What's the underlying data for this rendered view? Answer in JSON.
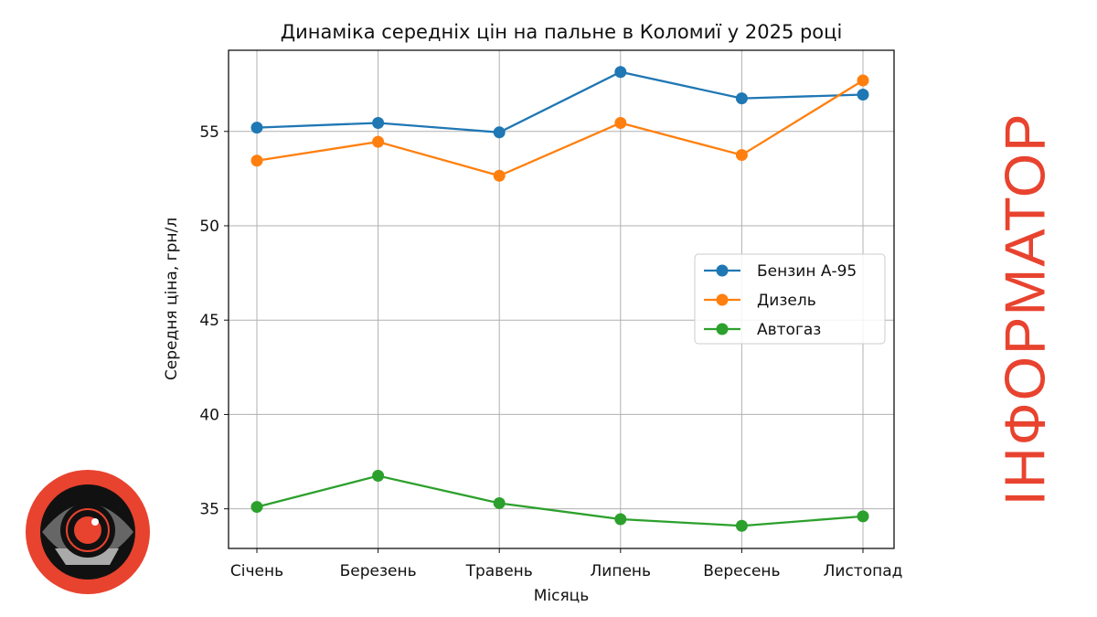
{
  "brand": {
    "name": "ІНФОРМАТОР",
    "accent": "#e8432f"
  },
  "chart_data": {
    "type": "line",
    "title": "Динаміка середніх цін на пальне в Коломиї у 2025 році",
    "xlabel": "Місяць",
    "ylabel": "Середня ціна, грн/л",
    "categories": [
      "Січень",
      "Березень",
      "Травень",
      "Липень",
      "Вересень",
      "Листопад"
    ],
    "ylim": [
      32.9,
      59.3
    ],
    "yticks": [
      35,
      40,
      45,
      50,
      55
    ],
    "grid": true,
    "legend": "center-right",
    "series": [
      {
        "name": "Бензин А-95",
        "color": "#1f77b4",
        "values": [
          55.2,
          55.45,
          54.95,
          58.15,
          56.75,
          56.95
        ]
      },
      {
        "name": "Дизель",
        "color": "#ff7f0e",
        "values": [
          53.45,
          54.45,
          52.65,
          55.45,
          53.75,
          57.7
        ]
      },
      {
        "name": "Автогаз",
        "color": "#2ca02c",
        "values": [
          35.1,
          36.75,
          35.3,
          34.45,
          34.1,
          34.6
        ]
      }
    ]
  }
}
